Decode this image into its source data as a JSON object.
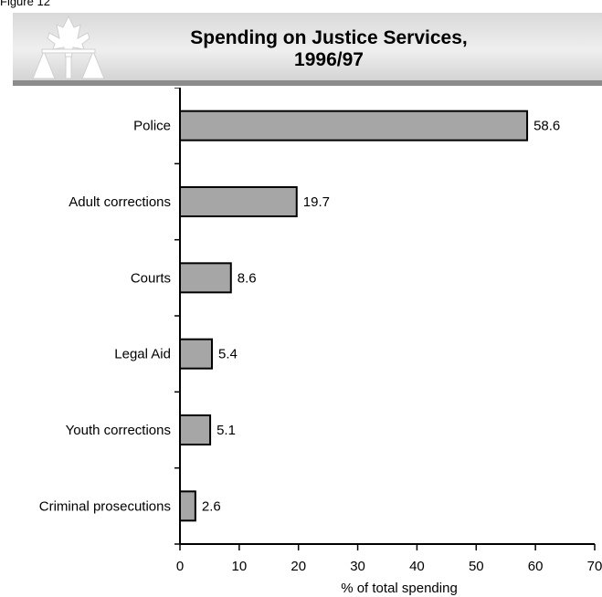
{
  "figure_label": "Figure 12",
  "title_line1": "Spending on Justice Services,",
  "title_line2": "1996/97",
  "colors": {
    "bar_fill": "#a6a6a6",
    "bar_stroke": "#000000",
    "banner_rule": "#8c8c8c"
  },
  "logo_icon": "maple-leaf-scales-icon",
  "chart_data": {
    "type": "bar",
    "orientation": "horizontal",
    "title": "Spending on Justice Services, 1996/97",
    "categories": [
      "Police",
      "Adult corrections",
      "Courts",
      "Legal Aid",
      "Youth corrections",
      "Criminal prosecutions"
    ],
    "values": [
      58.6,
      19.7,
      8.6,
      5.4,
      5.1,
      2.6
    ],
    "data_labels": [
      "58.6",
      "19.7",
      "8.6",
      "5.4",
      "5.1",
      "2.6"
    ],
    "xlabel": "% of total spending",
    "ylabel": "",
    "xlim": [
      0,
      70
    ],
    "xticks": [
      0,
      10,
      20,
      30,
      40,
      50,
      60,
      70
    ],
    "grid": false,
    "legend": "none"
  }
}
